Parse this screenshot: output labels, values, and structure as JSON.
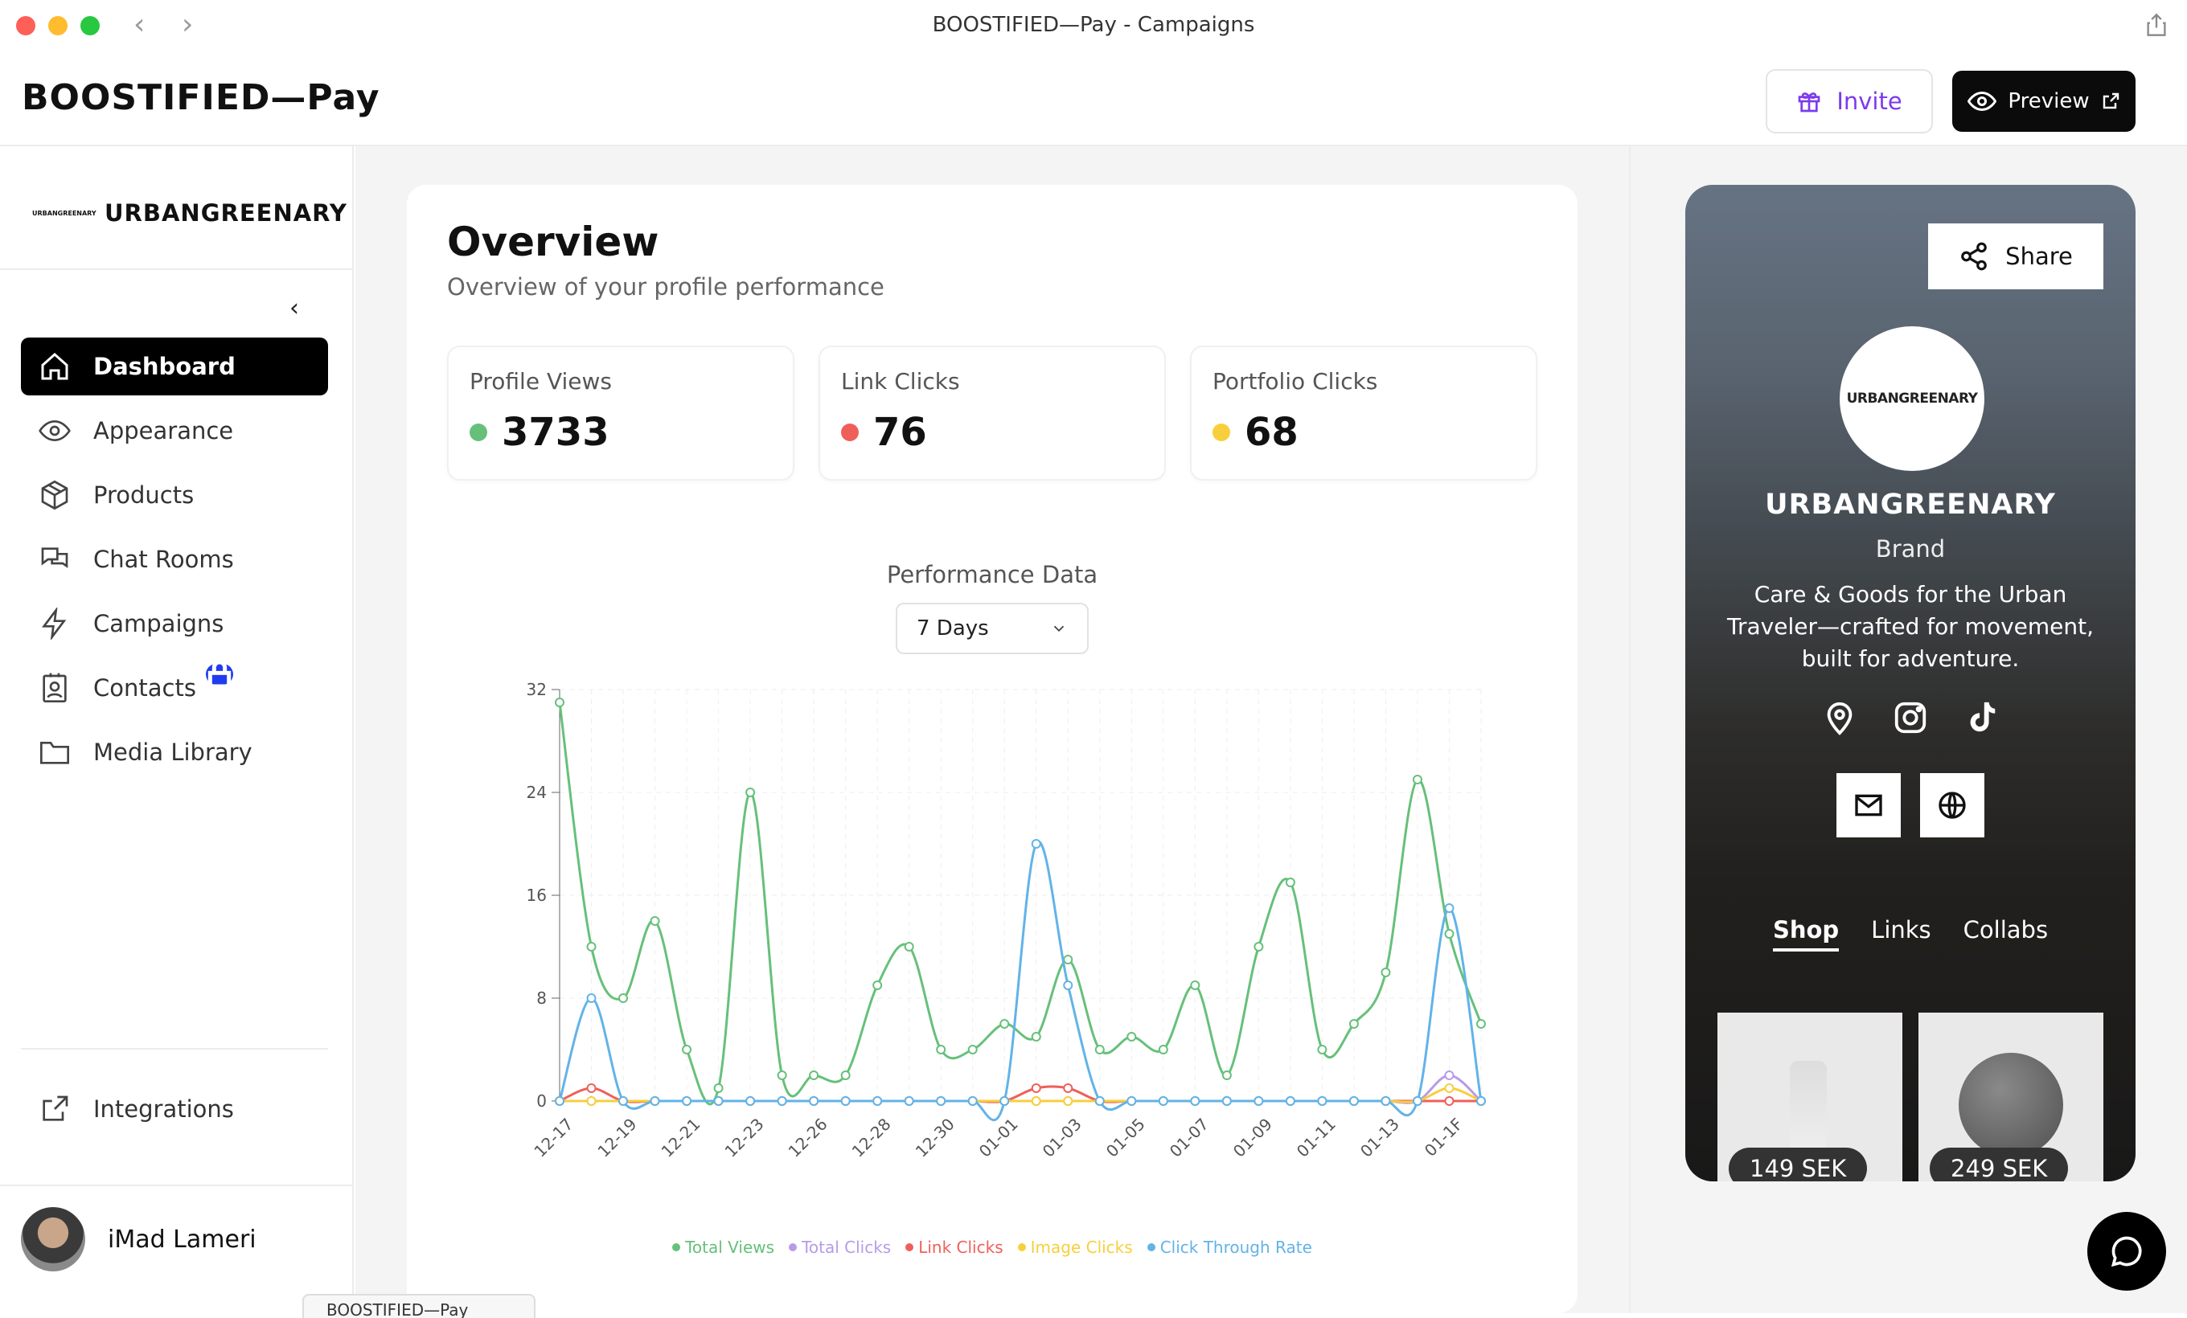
{
  "window": {
    "title": "BOOSTIFIED—Pay - Campaigns",
    "traffic_colors": [
      "#fe5f57",
      "#febc2e",
      "#28c840"
    ]
  },
  "header": {
    "brand": "BOOSTIFIED—Pay",
    "invite_label": "Invite",
    "preview_label": "Preview"
  },
  "sidebar": {
    "org_name": "URBANGREENARY",
    "org_logo_text": "URBANGREENARY",
    "items": [
      {
        "label": "Dashboard",
        "icon": "home-icon",
        "active": true
      },
      {
        "label": "Appearance",
        "icon": "eye-icon"
      },
      {
        "label": "Products",
        "icon": "box-icon"
      },
      {
        "label": "Chat Rooms",
        "icon": "chat-icon"
      },
      {
        "label": "Campaigns",
        "icon": "bolt-icon"
      },
      {
        "label": "Contacts",
        "icon": "contact-card-icon",
        "locked": true
      },
      {
        "label": "Media Library",
        "icon": "folder-icon"
      }
    ],
    "integrations_label": "Integrations",
    "user_name": "iMad Lameri"
  },
  "overview": {
    "title": "Overview",
    "subtitle": "Overview of your profile performance",
    "stats": [
      {
        "label": "Profile Views",
        "value": "3733",
        "color": "#66c07a"
      },
      {
        "label": "Link Clicks",
        "value": "76",
        "color": "#ef5f5a"
      },
      {
        "label": "Portfolio Clicks",
        "value": "68",
        "color": "#f7cf3c"
      }
    ],
    "performance_title": "Performance Data",
    "range_selected": "7 Days"
  },
  "chart_data": {
    "type": "line",
    "ylim": [
      0,
      32
    ],
    "yticks": [
      0,
      8,
      16,
      24,
      32
    ],
    "x_tick_labels": [
      "12-17",
      "12-19",
      "12-21",
      "12-23",
      "12-26",
      "12-28",
      "12-30",
      "01-01",
      "01-03",
      "01-05",
      "01-07",
      "01-09",
      "01-11",
      "01-13",
      "01-1F"
    ],
    "point_count": 30,
    "series": [
      {
        "name": "Total Views",
        "color": "#66c07a",
        "values": [
          31,
          12,
          8,
          14,
          4,
          1,
          24,
          2,
          2,
          2,
          9,
          12,
          4,
          4,
          6,
          5,
          11,
          4,
          5,
          4,
          9,
          2,
          12,
          17,
          4,
          6,
          10,
          25,
          13,
          6
        ]
      },
      {
        "name": "Total Clicks",
        "color": "#b89be8",
        "values": [
          0,
          0,
          0,
          0,
          0,
          0,
          0,
          0,
          0,
          0,
          0,
          0,
          0,
          0,
          0,
          0,
          0,
          0,
          0,
          0,
          0,
          0,
          0,
          0,
          0,
          0,
          0,
          0,
          2,
          0
        ]
      },
      {
        "name": "Link Clicks",
        "color": "#ef5f5a",
        "values": [
          0,
          1,
          0,
          0,
          0,
          0,
          0,
          0,
          0,
          0,
          0,
          0,
          0,
          0,
          0,
          1,
          1,
          0,
          0,
          0,
          0,
          0,
          0,
          0,
          0,
          0,
          0,
          0,
          0,
          0
        ]
      },
      {
        "name": "Image Clicks",
        "color": "#f7cf3c",
        "values": [
          0,
          0,
          0,
          0,
          0,
          0,
          0,
          0,
          0,
          0,
          0,
          0,
          0,
          0,
          0,
          0,
          0,
          0,
          0,
          0,
          0,
          0,
          0,
          0,
          0,
          0,
          0,
          0,
          1,
          0
        ]
      },
      {
        "name": "Click Through Rate",
        "color": "#62b3e8",
        "values": [
          0,
          8,
          0,
          0,
          0,
          0,
          0,
          0,
          0,
          0,
          0,
          0,
          0,
          0,
          0,
          20,
          9,
          0,
          0,
          0,
          0,
          0,
          0,
          0,
          0,
          0,
          0,
          0,
          15,
          0
        ]
      }
    ],
    "grid": true,
    "legend": "bottom"
  },
  "preview": {
    "share_label": "Share",
    "logo_text": "URBANGREENARY",
    "name": "URBANGREENARY",
    "role": "Brand",
    "bio": "Care & Goods for the Urban Traveler—crafted for movement, built for adventure.",
    "tabs": [
      "Shop",
      "Links",
      "Collabs"
    ],
    "products": [
      {
        "price": "149 SEK"
      },
      {
        "price": "249 SEK"
      }
    ]
  },
  "bottom_tab_label": "BOOSTIFIED—Pay"
}
